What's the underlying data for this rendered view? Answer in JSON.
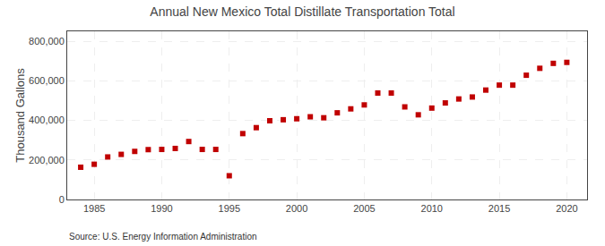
{
  "chart_data": {
    "type": "scatter",
    "title": "Annual New Mexico Total Distillate Transportation Total",
    "ylabel": "Thousand Gallons",
    "annotation": "Source: U.S. Energy Information Administration",
    "color": "#c00000",
    "marker": "square",
    "grid": true,
    "x": [
      1984,
      1985,
      1986,
      1987,
      1988,
      1989,
      1990,
      1991,
      1992,
      1993,
      1994,
      1995,
      1996,
      1997,
      1998,
      1999,
      2000,
      2001,
      2002,
      2003,
      2004,
      2005,
      2006,
      2007,
      2008,
      2009,
      2010,
      2011,
      2012,
      2013,
      2014,
      2015,
      2016,
      2017,
      2018,
      2019,
      2020
    ],
    "values": [
      163000,
      178000,
      215000,
      228000,
      243000,
      252000,
      253000,
      258000,
      293000,
      253000,
      253000,
      120000,
      333000,
      363000,
      398000,
      403000,
      408000,
      418000,
      413000,
      438000,
      458000,
      478000,
      538000,
      538000,
      468000,
      428000,
      462000,
      488000,
      508000,
      518000,
      553000,
      578000,
      578000,
      628000,
      663000,
      688000,
      693000
    ],
    "xlim": [
      1983.0,
      2021.5
    ],
    "ylim": [
      0,
      850000
    ],
    "xticks": [
      1985,
      1990,
      1995,
      2000,
      2005,
      2010,
      2015,
      2020
    ],
    "yticks": [
      0,
      {
        "value": 200000,
        "label": "200,000"
      },
      {
        "value": 400000,
        "label": "400,000"
      },
      {
        "value": 600000,
        "label": "600,000"
      },
      {
        "value": 800000,
        "label": "800,000"
      }
    ]
  }
}
